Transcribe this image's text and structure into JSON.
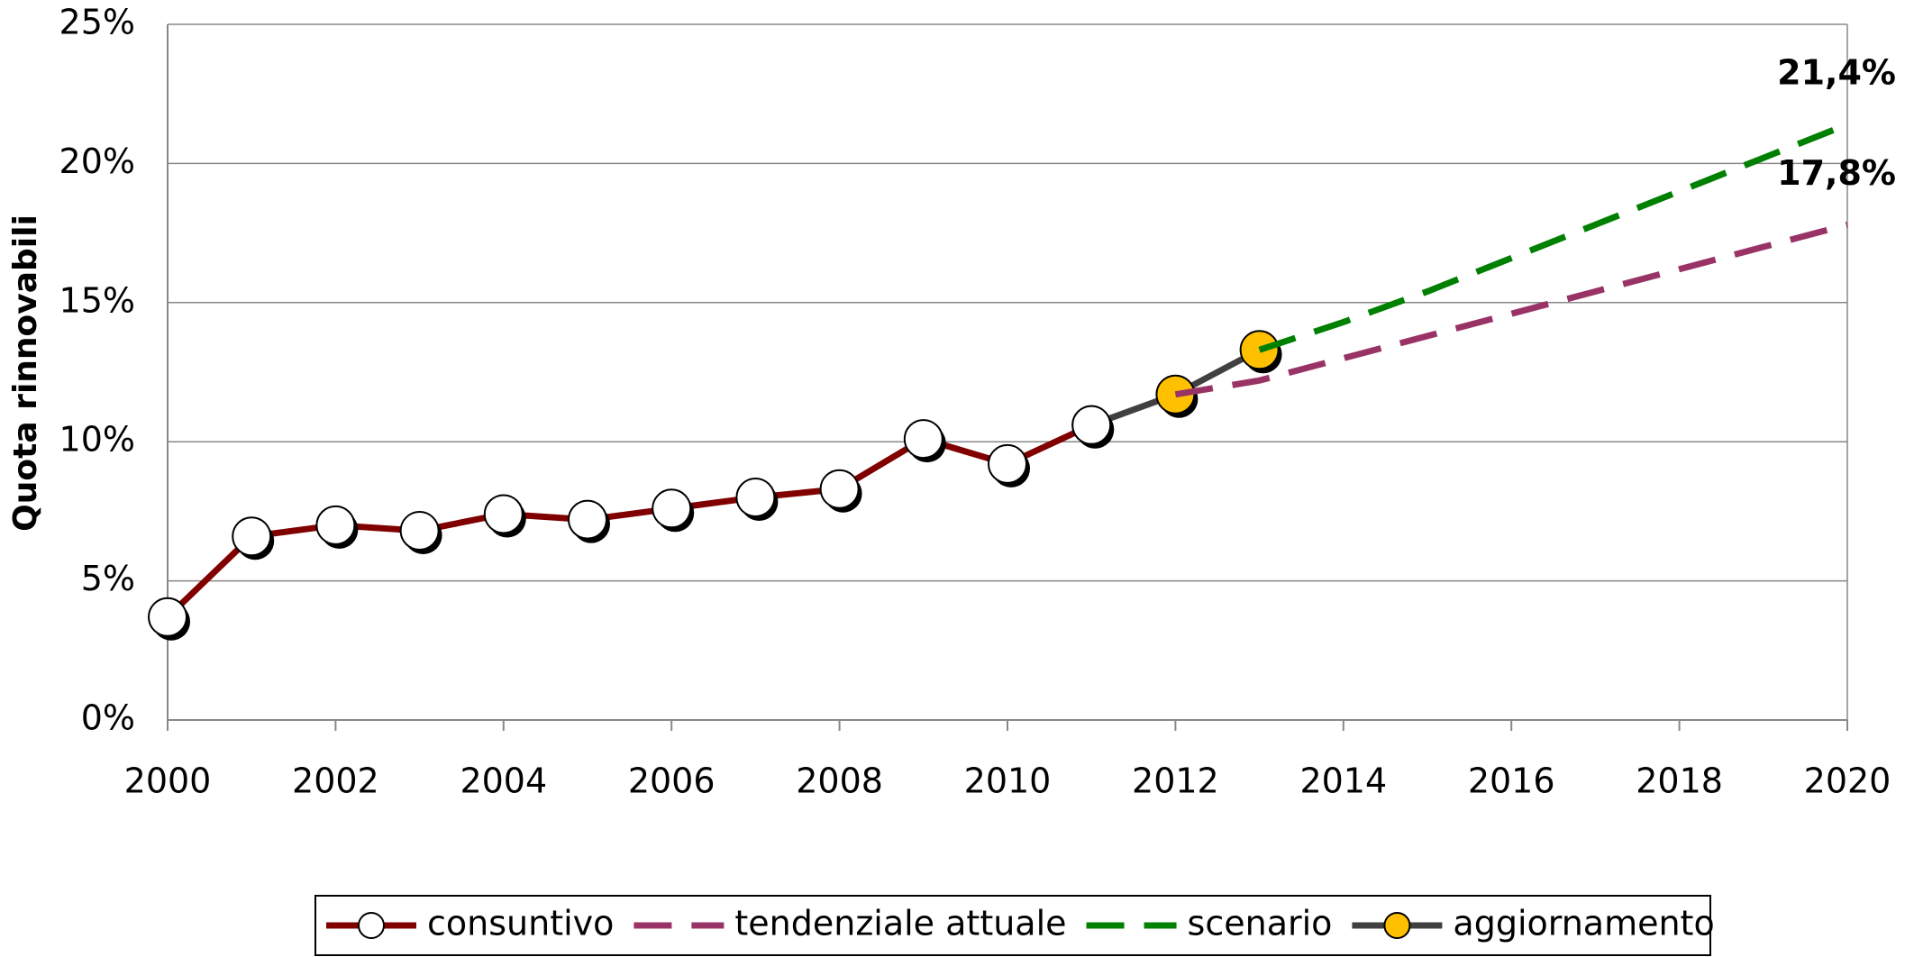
{
  "chart_data": {
    "type": "line",
    "y_label": "Quota rinnovabili",
    "x": [
      2000,
      2001,
      2002,
      2003,
      2004,
      2005,
      2006,
      2007,
      2008,
      2009,
      2010,
      2011,
      2012,
      2013,
      2014,
      2015,
      2016,
      2017,
      2018,
      2019,
      2020
    ],
    "xlim": [
      2000,
      2020
    ],
    "xticks": [
      2000,
      2002,
      2004,
      2006,
      2008,
      2010,
      2012,
      2014,
      2016,
      2018,
      2020
    ],
    "ylim": [
      0,
      25
    ],
    "yticks": [
      {
        "value": 0,
        "label": "0%"
      },
      {
        "value": 5,
        "label": "5%"
      },
      {
        "value": 10,
        "label": "10%"
      },
      {
        "value": 15,
        "label": "15%"
      },
      {
        "value": 20,
        "label": "20%"
      },
      {
        "value": 25,
        "label": "25%"
      }
    ],
    "grid": true,
    "legend": "bottom",
    "series": [
      {
        "name": "consuntivo",
        "color": "#800000",
        "dashed": false,
        "marker": "#ffffff",
        "values": [
          3.7,
          6.6,
          7.0,
          6.8,
          7.4,
          7.2,
          7.6,
          8.0,
          8.3,
          10.1,
          9.2,
          10.6,
          null,
          null,
          null,
          null,
          null,
          null,
          null,
          null,
          null
        ]
      },
      {
        "name": "tendenziale attuale",
        "color": "#993366",
        "dashed": true,
        "marker": null,
        "values": [
          null,
          null,
          null,
          null,
          null,
          null,
          null,
          null,
          null,
          null,
          null,
          null,
          11.7,
          12.2,
          13.0,
          13.8,
          14.6,
          15.4,
          16.2,
          17.0,
          17.8
        ],
        "value_labels": [
          null,
          null,
          null,
          null,
          null,
          null,
          null,
          null,
          null,
          null,
          null,
          null,
          null,
          null,
          null,
          null,
          null,
          null,
          null,
          null,
          "17,8%"
        ]
      },
      {
        "name": "scenario",
        "color": "#008000",
        "dashed": true,
        "marker": null,
        "values": [
          null,
          null,
          null,
          null,
          null,
          null,
          null,
          null,
          null,
          null,
          null,
          null,
          null,
          13.3,
          14.3,
          15.4,
          16.6,
          17.8,
          19.0,
          20.2,
          21.4
        ],
        "value_labels": [
          null,
          null,
          null,
          null,
          null,
          null,
          null,
          null,
          null,
          null,
          null,
          null,
          null,
          null,
          null,
          null,
          null,
          null,
          null,
          null,
          "21,4%"
        ]
      },
      {
        "name": "aggiornamento",
        "color": "#404040",
        "dashed": false,
        "marker": "#ffc000",
        "values": [
          null,
          null,
          null,
          null,
          null,
          null,
          null,
          null,
          null,
          null,
          null,
          10.6,
          11.7,
          13.3,
          null,
          null,
          null,
          null,
          null,
          null,
          null
        ]
      }
    ]
  }
}
